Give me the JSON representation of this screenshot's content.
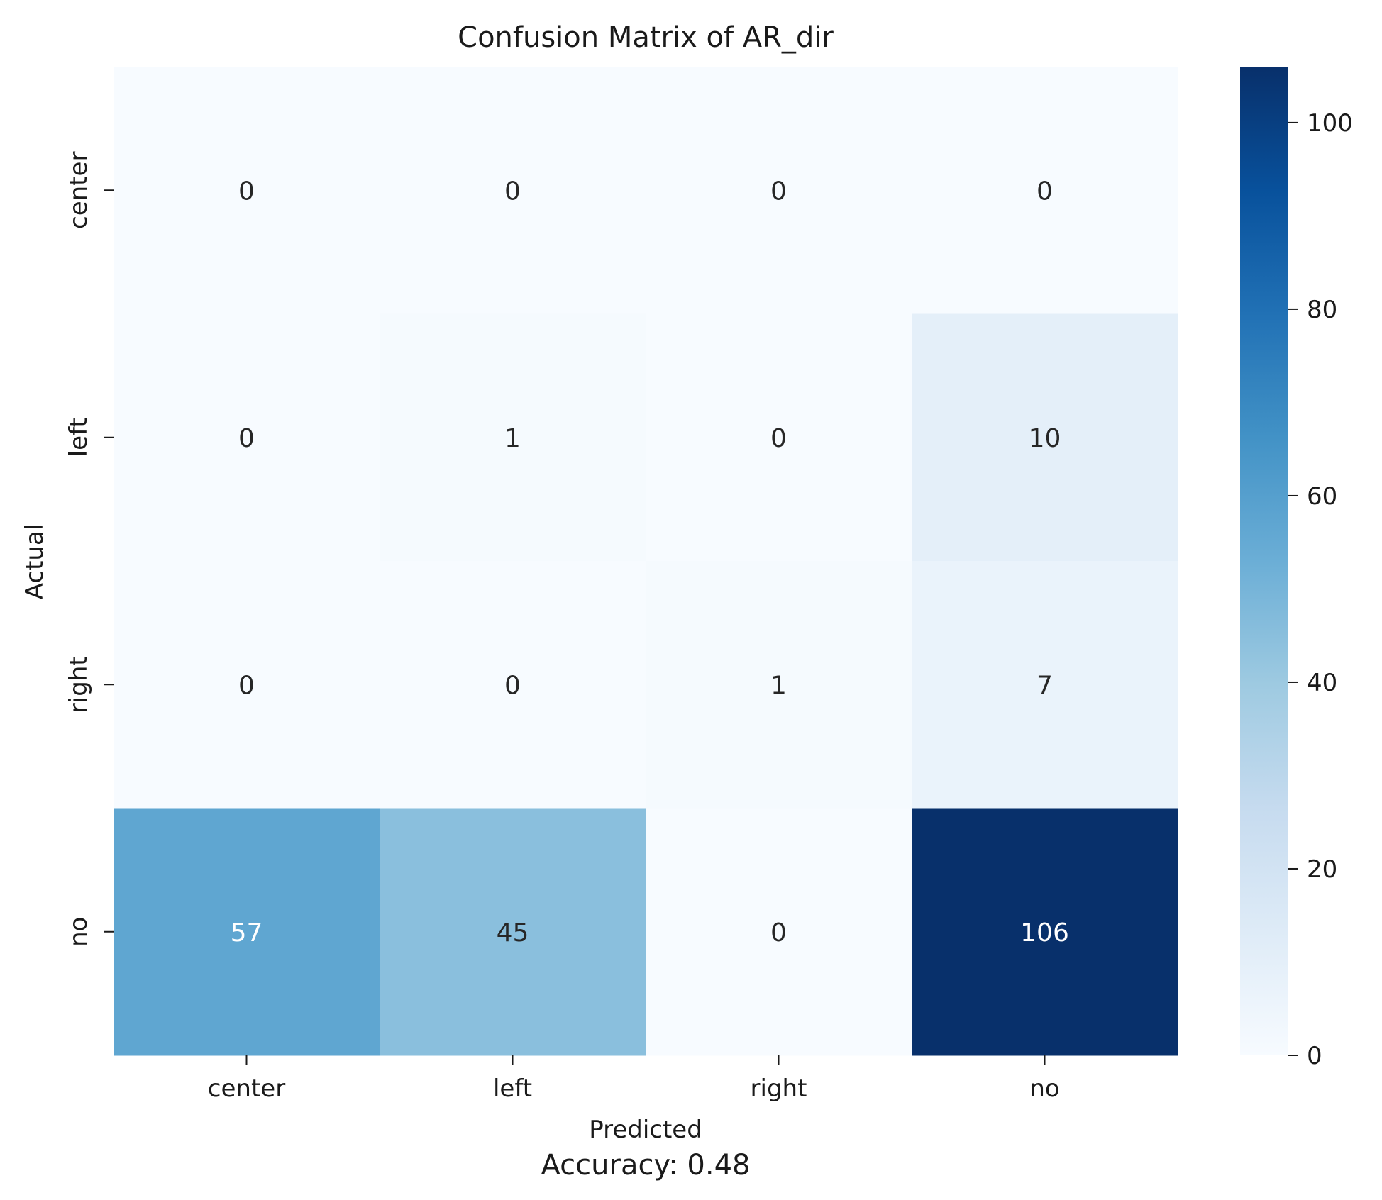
{
  "chart_data": {
    "type": "heatmap",
    "title": "Confusion Matrix of AR_dir",
    "xlabel": "Predicted",
    "ylabel": "Actual",
    "footnote": "Accuracy: 0.48",
    "x_categories": [
      "center",
      "left",
      "right",
      "no"
    ],
    "y_categories": [
      "center",
      "left",
      "right",
      "no"
    ],
    "values": [
      [
        0,
        0,
        0,
        0
      ],
      [
        0,
        1,
        0,
        10
      ],
      [
        0,
        0,
        1,
        7
      ],
      [
        57,
        45,
        0,
        106
      ]
    ],
    "colorbar": {
      "min": 0,
      "max": 106,
      "ticks": [
        0,
        20,
        40,
        60,
        80,
        100
      ],
      "colormap": "Blues"
    }
  }
}
